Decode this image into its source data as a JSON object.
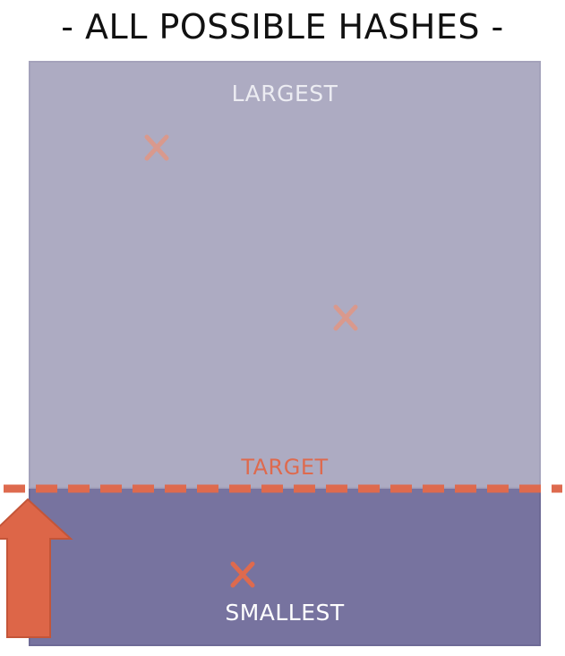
{
  "title": "- ALL POSSIBLE HASHES -",
  "labels": {
    "largest": "LARGEST",
    "target": "TARGET",
    "smallest": "SMALLEST"
  },
  "colors": {
    "upper_region": "#adabc2",
    "lower_region": "#77739f",
    "target_line": "#de6a4e",
    "marker_faded": "#d9998d",
    "marker_solid": "#de6a4e",
    "arrow": "#dd6648"
  },
  "icons": [
    "x-marker-icon",
    "up-arrow-icon"
  ]
}
